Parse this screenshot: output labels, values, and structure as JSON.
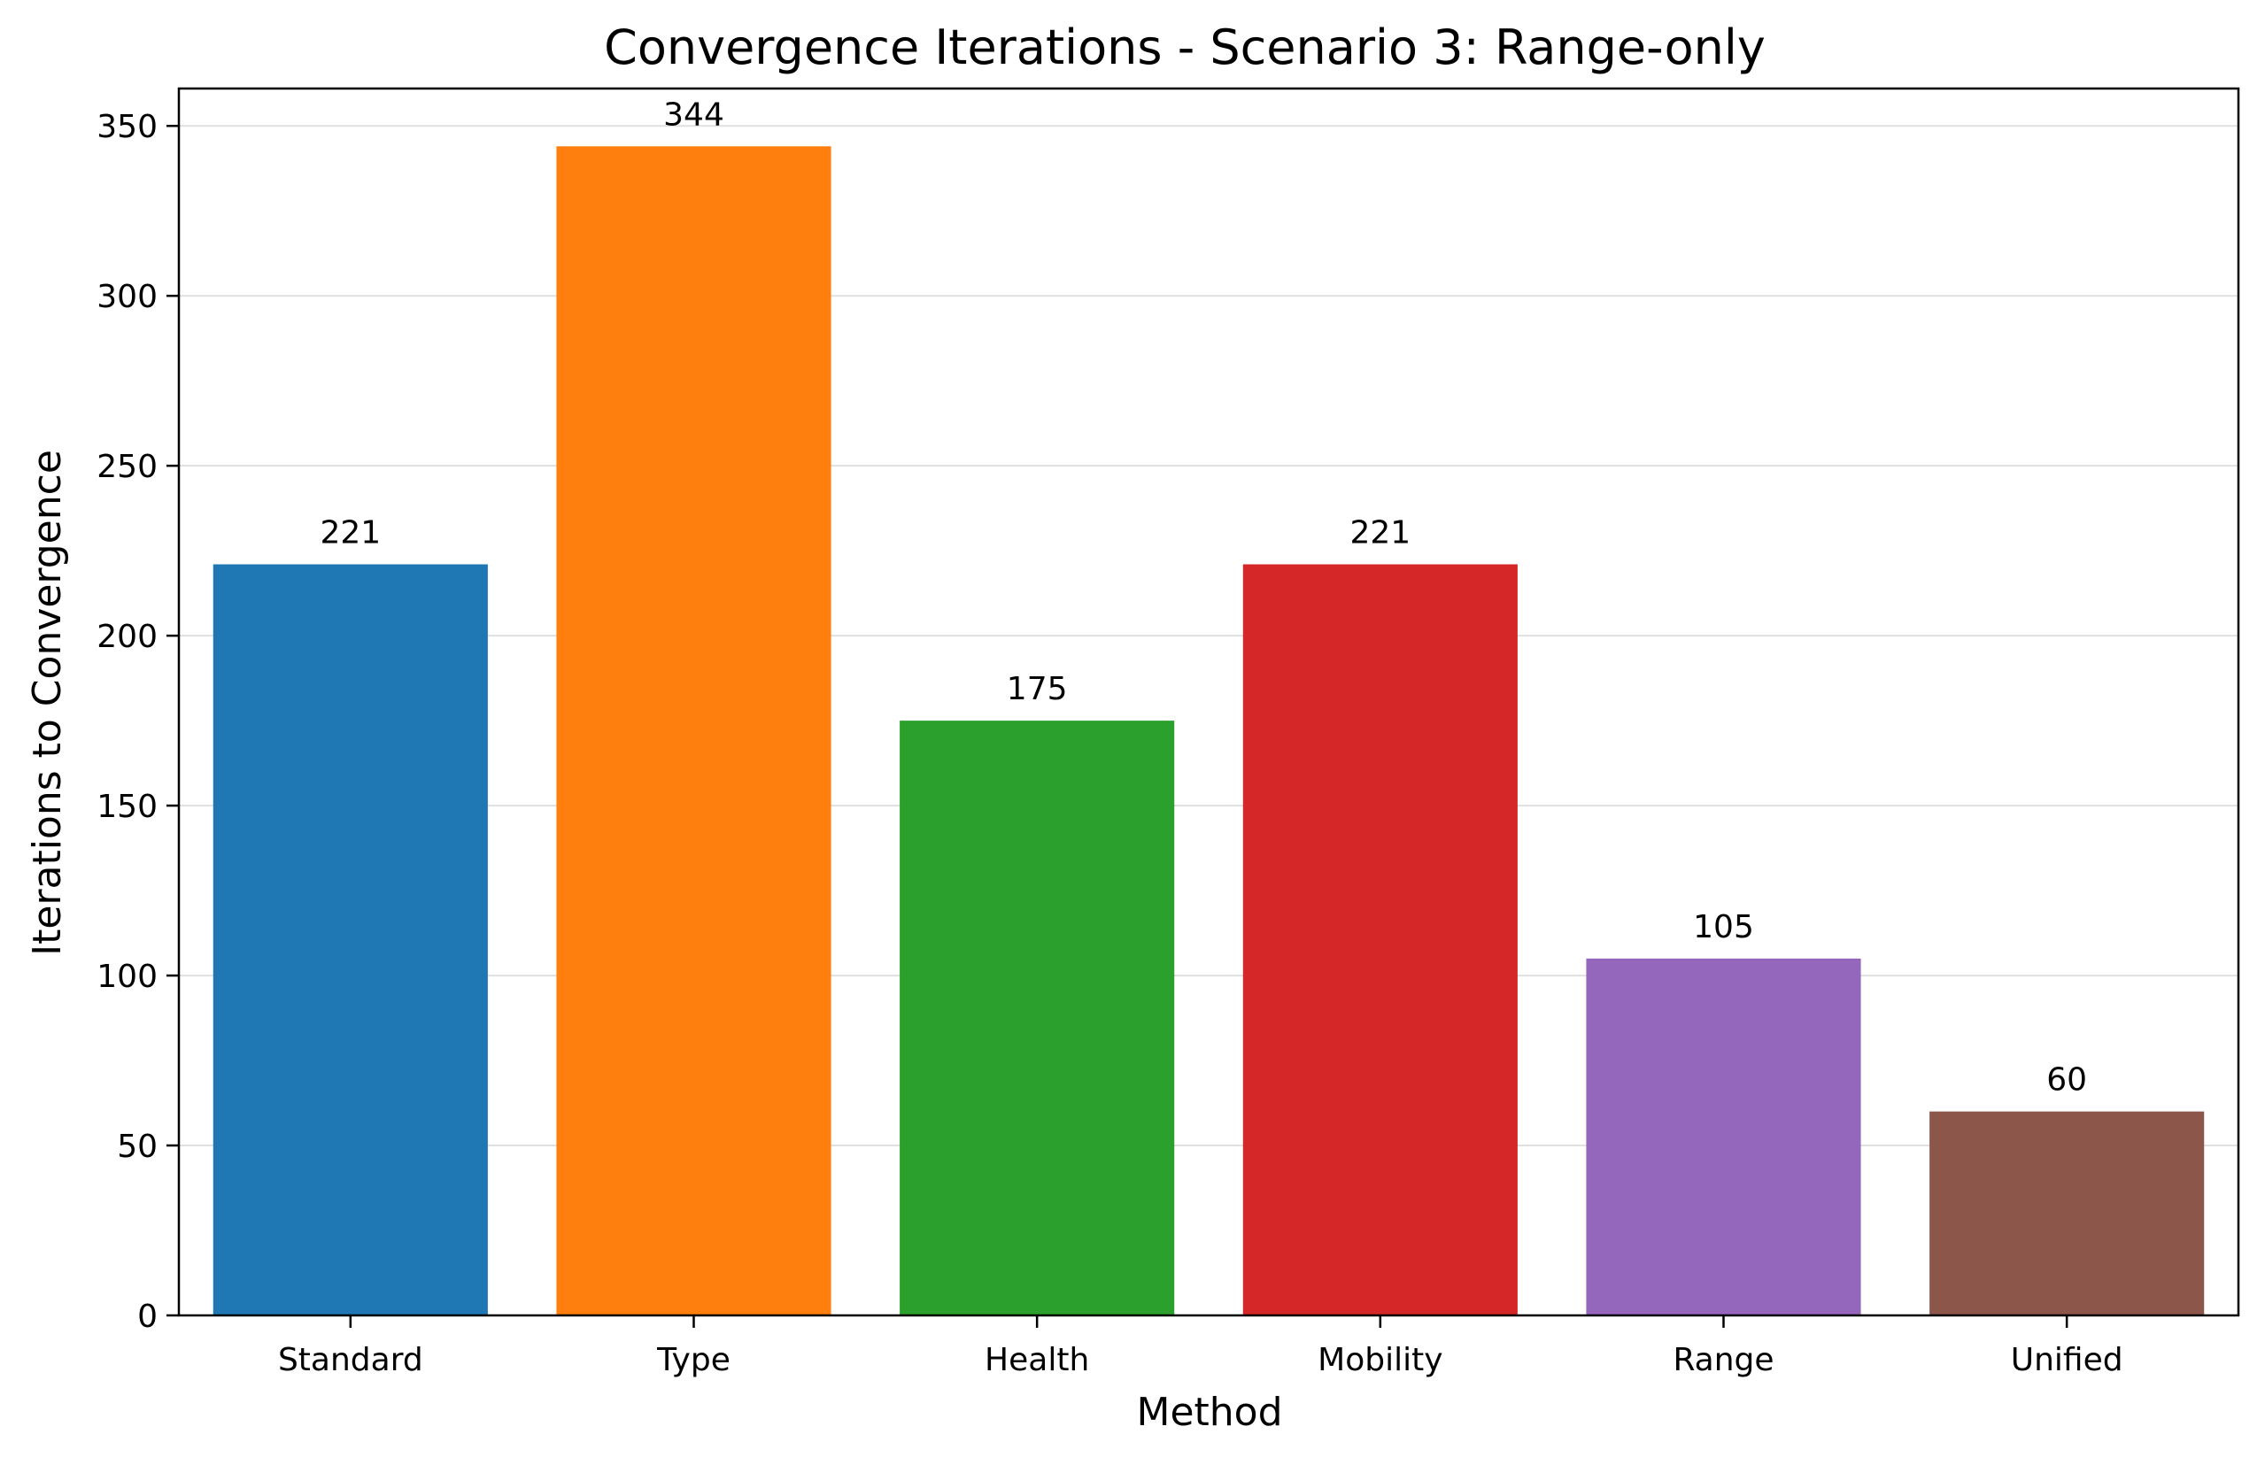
{
  "chart_data": {
    "type": "bar",
    "title": "Convergence Iterations - Scenario 3: Range-only",
    "xlabel": "Method",
    "ylabel": "Iterations to Convergence",
    "categories": [
      "Standard",
      "Type",
      "Health",
      "Mobility",
      "Range",
      "Unified"
    ],
    "values": [
      221,
      344,
      175,
      221,
      105,
      60
    ],
    "data_labels": [
      "221",
      "344",
      "175",
      "221",
      "105",
      "60"
    ],
    "colors": [
      "#1f77b4",
      "#ff7f0e",
      "#2ca02c",
      "#d62728",
      "#9467bd",
      "#8c564b"
    ],
    "ylim": [
      0,
      361
    ],
    "yticks": [
      0,
      50,
      100,
      150,
      200,
      250,
      300,
      350
    ],
    "ytick_labels": [
      "0",
      "50",
      "100",
      "150",
      "200",
      "250",
      "300",
      "350"
    ],
    "grid": "horizontal",
    "legend": "none"
  }
}
